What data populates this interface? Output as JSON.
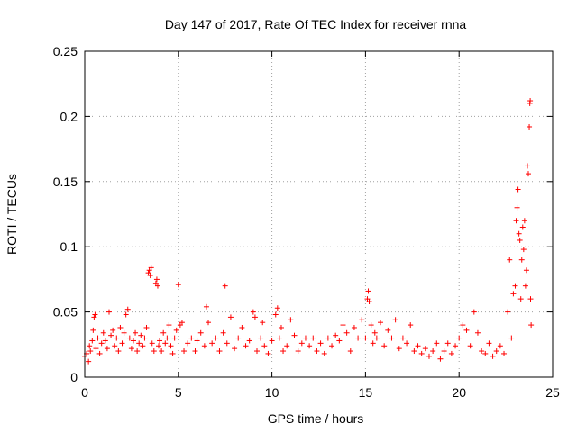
{
  "chart_data": {
    "type": "scatter",
    "title": "Day 147 of 2017, Rate Of TEC Index for receiver rnna",
    "xlabel": "GPS time / hours",
    "ylabel": "ROTI / TECUs",
    "xlim": [
      0,
      25
    ],
    "ylim": [
      0,
      0.25
    ],
    "xticks": [
      0,
      5,
      10,
      15,
      20,
      25
    ],
    "xtick_labels": [
      "0",
      "5",
      "10",
      "15",
      "20",
      "25"
    ],
    "yticks": [
      0,
      0.05,
      0.1,
      0.15,
      0.2,
      0.25
    ],
    "ytick_labels": [
      "0",
      "0.05",
      "0.1",
      "0.15",
      "0.2",
      "0.25"
    ],
    "grid": true,
    "marker": "+",
    "marker_color": "#ff0000",
    "series": [
      {
        "name": "ROTI",
        "points": [
          [
            0.0,
            0.016
          ],
          [
            0.1,
            0.018
          ],
          [
            0.2,
            0.012
          ],
          [
            0.25,
            0.024
          ],
          [
            0.3,
            0.02
          ],
          [
            0.4,
            0.028
          ],
          [
            0.45,
            0.036
          ],
          [
            0.5,
            0.046
          ],
          [
            0.55,
            0.048
          ],
          [
            0.6,
            0.022
          ],
          [
            0.7,
            0.03
          ],
          [
            0.8,
            0.018
          ],
          [
            0.9,
            0.026
          ],
          [
            1.0,
            0.034
          ],
          [
            1.1,
            0.028
          ],
          [
            1.2,
            0.022
          ],
          [
            1.3,
            0.05
          ],
          [
            1.4,
            0.032
          ],
          [
            1.5,
            0.036
          ],
          [
            1.6,
            0.024
          ],
          [
            1.7,
            0.03
          ],
          [
            1.8,
            0.02
          ],
          [
            1.9,
            0.038
          ],
          [
            2.0,
            0.026
          ],
          [
            2.1,
            0.034
          ],
          [
            2.2,
            0.048
          ],
          [
            2.3,
            0.052
          ],
          [
            2.4,
            0.03
          ],
          [
            2.5,
            0.022
          ],
          [
            2.6,
            0.028
          ],
          [
            2.7,
            0.034
          ],
          [
            2.8,
            0.02
          ],
          [
            2.9,
            0.026
          ],
          [
            3.0,
            0.032
          ],
          [
            3.1,
            0.024
          ],
          [
            3.2,
            0.03
          ],
          [
            3.3,
            0.038
          ],
          [
            3.4,
            0.08
          ],
          [
            3.45,
            0.082
          ],
          [
            3.5,
            0.078
          ],
          [
            3.55,
            0.084
          ],
          [
            3.6,
            0.026
          ],
          [
            3.7,
            0.02
          ],
          [
            3.8,
            0.072
          ],
          [
            3.85,
            0.075
          ],
          [
            3.9,
            0.07
          ],
          [
            3.95,
            0.024
          ],
          [
            4.0,
            0.028
          ],
          [
            4.1,
            0.02
          ],
          [
            4.2,
            0.034
          ],
          [
            4.3,
            0.026
          ],
          [
            4.4,
            0.03
          ],
          [
            4.5,
            0.04
          ],
          [
            4.6,
            0.024
          ],
          [
            4.7,
            0.018
          ],
          [
            4.8,
            0.03
          ],
          [
            4.9,
            0.036
          ],
          [
            5.0,
            0.071
          ],
          [
            5.1,
            0.04
          ],
          [
            5.2,
            0.042
          ],
          [
            5.3,
            0.02
          ],
          [
            5.5,
            0.026
          ],
          [
            5.7,
            0.03
          ],
          [
            5.9,
            0.02
          ],
          [
            6.0,
            0.028
          ],
          [
            6.2,
            0.034
          ],
          [
            6.4,
            0.024
          ],
          [
            6.5,
            0.054
          ],
          [
            6.6,
            0.042
          ],
          [
            6.8,
            0.026
          ],
          [
            7.0,
            0.03
          ],
          [
            7.2,
            0.02
          ],
          [
            7.4,
            0.034
          ],
          [
            7.5,
            0.07
          ],
          [
            7.6,
            0.026
          ],
          [
            7.8,
            0.046
          ],
          [
            8.0,
            0.022
          ],
          [
            8.2,
            0.03
          ],
          [
            8.4,
            0.038
          ],
          [
            8.6,
            0.024
          ],
          [
            8.8,
            0.028
          ],
          [
            9.0,
            0.05
          ],
          [
            9.1,
            0.046
          ],
          [
            9.2,
            0.02
          ],
          [
            9.4,
            0.03
          ],
          [
            9.5,
            0.042
          ],
          [
            9.6,
            0.024
          ],
          [
            9.8,
            0.018
          ],
          [
            10.0,
            0.028
          ],
          [
            10.2,
            0.048
          ],
          [
            10.3,
            0.053
          ],
          [
            10.4,
            0.03
          ],
          [
            10.5,
            0.038
          ],
          [
            10.6,
            0.02
          ],
          [
            10.8,
            0.024
          ],
          [
            11.0,
            0.044
          ],
          [
            11.2,
            0.032
          ],
          [
            11.4,
            0.02
          ],
          [
            11.6,
            0.026
          ],
          [
            11.8,
            0.03
          ],
          [
            12.0,
            0.024
          ],
          [
            12.2,
            0.03
          ],
          [
            12.4,
            0.02
          ],
          [
            12.6,
            0.026
          ],
          [
            12.8,
            0.018
          ],
          [
            13.0,
            0.03
          ],
          [
            13.2,
            0.024
          ],
          [
            13.4,
            0.032
          ],
          [
            13.6,
            0.028
          ],
          [
            13.8,
            0.04
          ],
          [
            14.0,
            0.034
          ],
          [
            14.2,
            0.02
          ],
          [
            14.4,
            0.038
          ],
          [
            14.6,
            0.03
          ],
          [
            14.8,
            0.044
          ],
          [
            15.0,
            0.03
          ],
          [
            15.1,
            0.06
          ],
          [
            15.15,
            0.066
          ],
          [
            15.2,
            0.058
          ],
          [
            15.3,
            0.04
          ],
          [
            15.4,
            0.026
          ],
          [
            15.5,
            0.034
          ],
          [
            15.6,
            0.03
          ],
          [
            15.8,
            0.042
          ],
          [
            16.0,
            0.024
          ],
          [
            16.2,
            0.036
          ],
          [
            16.4,
            0.03
          ],
          [
            16.6,
            0.044
          ],
          [
            16.8,
            0.022
          ],
          [
            17.0,
            0.03
          ],
          [
            17.2,
            0.026
          ],
          [
            17.4,
            0.04
          ],
          [
            17.6,
            0.02
          ],
          [
            17.8,
            0.024
          ],
          [
            18.0,
            0.018
          ],
          [
            18.2,
            0.022
          ],
          [
            18.4,
            0.016
          ],
          [
            18.6,
            0.02
          ],
          [
            18.8,
            0.026
          ],
          [
            19.0,
            0.014
          ],
          [
            19.2,
            0.02
          ],
          [
            19.4,
            0.026
          ],
          [
            19.6,
            0.018
          ],
          [
            19.8,
            0.024
          ],
          [
            20.0,
            0.03
          ],
          [
            20.2,
            0.04
          ],
          [
            20.4,
            0.036
          ],
          [
            20.6,
            0.024
          ],
          [
            20.8,
            0.05
          ],
          [
            21.0,
            0.034
          ],
          [
            21.2,
            0.02
          ],
          [
            21.4,
            0.018
          ],
          [
            21.6,
            0.026
          ],
          [
            21.8,
            0.016
          ],
          [
            22.0,
            0.02
          ],
          [
            22.2,
            0.024
          ],
          [
            22.4,
            0.018
          ],
          [
            22.6,
            0.05
          ],
          [
            22.7,
            0.09
          ],
          [
            22.8,
            0.03
          ],
          [
            22.9,
            0.064
          ],
          [
            23.0,
            0.07
          ],
          [
            23.05,
            0.12
          ],
          [
            23.1,
            0.13
          ],
          [
            23.15,
            0.144
          ],
          [
            23.2,
            0.11
          ],
          [
            23.25,
            0.105
          ],
          [
            23.3,
            0.06
          ],
          [
            23.35,
            0.09
          ],
          [
            23.4,
            0.115
          ],
          [
            23.45,
            0.098
          ],
          [
            23.5,
            0.12
          ],
          [
            23.55,
            0.07
          ],
          [
            23.6,
            0.082
          ],
          [
            23.65,
            0.162
          ],
          [
            23.7,
            0.156
          ],
          [
            23.75,
            0.192
          ],
          [
            23.78,
            0.21
          ],
          [
            23.8,
            0.212
          ],
          [
            23.82,
            0.06
          ],
          [
            23.85,
            0.04
          ]
        ]
      }
    ]
  }
}
